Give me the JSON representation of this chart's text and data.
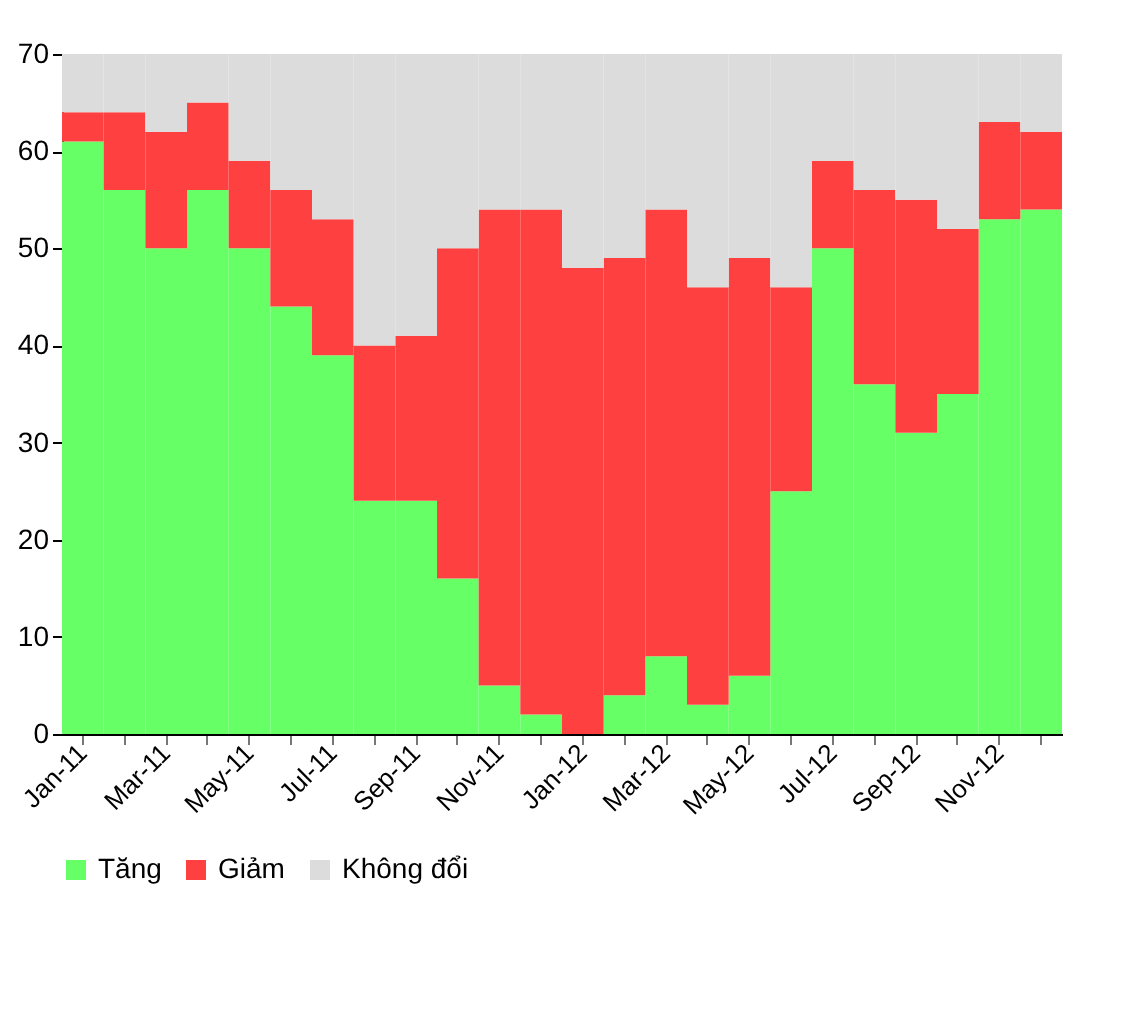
{
  "chart_data": {
    "type": "bar",
    "stacked": true,
    "categories": [
      "Jan-11",
      null,
      "Mar-11",
      null,
      "May-11",
      null,
      "Jul-11",
      null,
      "Sep-11",
      null,
      "Nov-11",
      null,
      "Jan-12",
      null,
      "Mar-12",
      null,
      "May-12",
      null,
      "Jul-12",
      null,
      "Sep-12",
      null,
      "Nov-12",
      null
    ],
    "series": [
      {
        "name": "Tăng",
        "color": "#66ff66",
        "values": [
          61,
          56,
          50,
          56,
          50,
          44,
          39,
          24,
          24,
          16,
          5,
          2,
          0,
          4,
          8,
          3,
          6,
          25,
          50,
          36,
          31,
          35,
          53,
          54
        ]
      },
      {
        "name": "Giảm",
        "color": "#ff4040",
        "values": [
          3,
          8,
          12,
          9,
          9,
          12,
          14,
          16,
          17,
          34,
          49,
          52,
          48,
          45,
          46,
          43,
          43,
          21,
          9,
          20,
          24,
          17,
          10,
          8
        ]
      },
      {
        "name": "Không đổi",
        "color": "#dcdcdc",
        "values": [
          6,
          6,
          8,
          5,
          11,
          14,
          17,
          30,
          29,
          20,
          16,
          16,
          22,
          21,
          16,
          24,
          21,
          24,
          11,
          14,
          15,
          18,
          7,
          8
        ]
      }
    ],
    "ylim": [
      0,
      70
    ],
    "yticks": [
      0,
      10,
      20,
      30,
      40,
      50,
      60,
      70
    ],
    "grid": false,
    "legend": "bottom"
  }
}
